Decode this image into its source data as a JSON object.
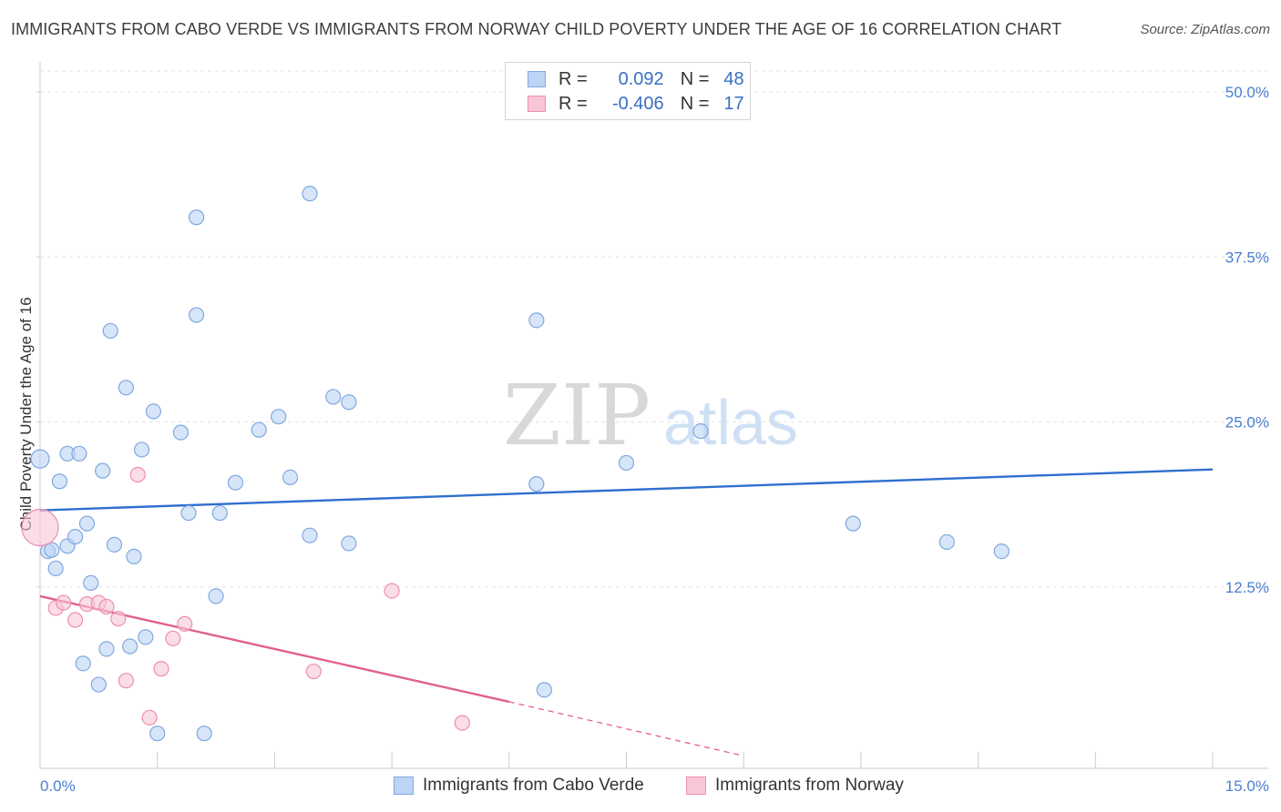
{
  "title": "IMMIGRANTS FROM CABO VERDE VS IMMIGRANTS FROM NORWAY CHILD POVERTY UNDER THE AGE OF 16 CORRELATION CHART",
  "source": "Source: ZipAtlas.com",
  "legend": {
    "rows": [
      {
        "r_label": "R =",
        "r_value": "0.092",
        "n_label": "N =",
        "n_value": "48"
      },
      {
        "r_label": "R =",
        "r_value": "-0.406",
        "n_label": "N =",
        "n_value": "17"
      }
    ]
  },
  "watermark": {
    "zip": "ZIP",
    "atlas": "atlas"
  },
  "colors": {
    "blue_fill": "#bcd4f5",
    "blue_stroke": "#7fa8e0",
    "blue_line": "#2f6fcf",
    "pink_fill": "#f9c6d6",
    "pink_stroke": "#ec90ad",
    "pink_line": "#e0608c"
  },
  "chart_data": {
    "type": "scatter",
    "title": "IMMIGRANTS FROM CABO VERDE VS IMMIGRANTS FROM NORWAY CHILD POVERTY UNDER THE AGE OF 16 CORRELATION CHART",
    "xlabel": "",
    "ylabel": "Child Poverty Under the Age of 16",
    "xlim": [
      0,
      15
    ],
    "ylim": [
      0,
      52
    ],
    "x_tick_labels": [
      "0.0%",
      "15.0%"
    ],
    "y_ticks": [
      12.5,
      25.0,
      37.5,
      50.0
    ],
    "y_tick_labels": [
      "12.5%",
      "25.0%",
      "37.5%",
      "50.0%"
    ],
    "legend_position": "bottom-center",
    "series": [
      {
        "name": "Immigrants from Cabo Verde",
        "color": "blue",
        "R": 0.092,
        "N": 48,
        "trend": {
          "x0": 0,
          "y0": 18.3,
          "x1": 15,
          "y1": 21.4
        },
        "points": [
          [
            0.0,
            22.2
          ],
          [
            0.1,
            15.2
          ],
          [
            0.15,
            15.3
          ],
          [
            0.2,
            13.9
          ],
          [
            0.25,
            20.5
          ],
          [
            0.35,
            15.6
          ],
          [
            0.35,
            22.6
          ],
          [
            0.45,
            16.3
          ],
          [
            0.5,
            22.6
          ],
          [
            0.55,
            6.7
          ],
          [
            0.6,
            17.3
          ],
          [
            0.65,
            12.8
          ],
          [
            0.75,
            5.1
          ],
          [
            0.8,
            21.3
          ],
          [
            0.85,
            7.8
          ],
          [
            0.9,
            31.9
          ],
          [
            0.95,
            15.7
          ],
          [
            1.1,
            27.6
          ],
          [
            1.15,
            8.0
          ],
          [
            1.2,
            14.8
          ],
          [
            1.3,
            22.9
          ],
          [
            1.35,
            8.7
          ],
          [
            1.45,
            25.8
          ],
          [
            1.5,
            1.4
          ],
          [
            1.8,
            24.2
          ],
          [
            1.9,
            18.1
          ],
          [
            2.0,
            40.5
          ],
          [
            2.0,
            33.1
          ],
          [
            2.1,
            1.4
          ],
          [
            2.25,
            11.8
          ],
          [
            2.3,
            18.1
          ],
          [
            2.5,
            20.4
          ],
          [
            2.8,
            24.4
          ],
          [
            3.05,
            25.4
          ],
          [
            3.2,
            20.8
          ],
          [
            3.45,
            42.3
          ],
          [
            3.45,
            16.4
          ],
          [
            3.75,
            26.9
          ],
          [
            3.95,
            26.5
          ],
          [
            3.95,
            15.8
          ],
          [
            6.35,
            32.7
          ],
          [
            6.35,
            20.3
          ],
          [
            6.45,
            4.7
          ],
          [
            7.5,
            21.9
          ],
          [
            8.45,
            24.3
          ],
          [
            10.4,
            17.3
          ],
          [
            11.6,
            15.9
          ],
          [
            12.3,
            15.2
          ]
        ]
      },
      {
        "name": "Immigrants from Norway",
        "color": "pink",
        "R": -0.406,
        "N": 17,
        "trend": {
          "x0": 0,
          "y0": 11.8,
          "x1": 6.0,
          "y1": 3.8,
          "dash_to_x": 9.0,
          "dash_to_y": -0.3
        },
        "points": [
          [
            0.0,
            17.0
          ],
          [
            0.2,
            10.9
          ],
          [
            0.3,
            11.3
          ],
          [
            0.45,
            10.0
          ],
          [
            0.6,
            11.2
          ],
          [
            0.75,
            11.3
          ],
          [
            0.85,
            11.0
          ],
          [
            1.0,
            10.1
          ],
          [
            1.1,
            5.4
          ],
          [
            1.25,
            21.0
          ],
          [
            1.4,
            2.6
          ],
          [
            1.55,
            6.3
          ],
          [
            1.7,
            8.6
          ],
          [
            1.85,
            9.7
          ],
          [
            3.5,
            6.1
          ],
          [
            4.5,
            12.2
          ],
          [
            5.4,
            2.2
          ]
        ]
      }
    ]
  },
  "bottom_legend": {
    "items": [
      "Immigrants from Cabo Verde",
      "Immigrants from Norway"
    ]
  }
}
